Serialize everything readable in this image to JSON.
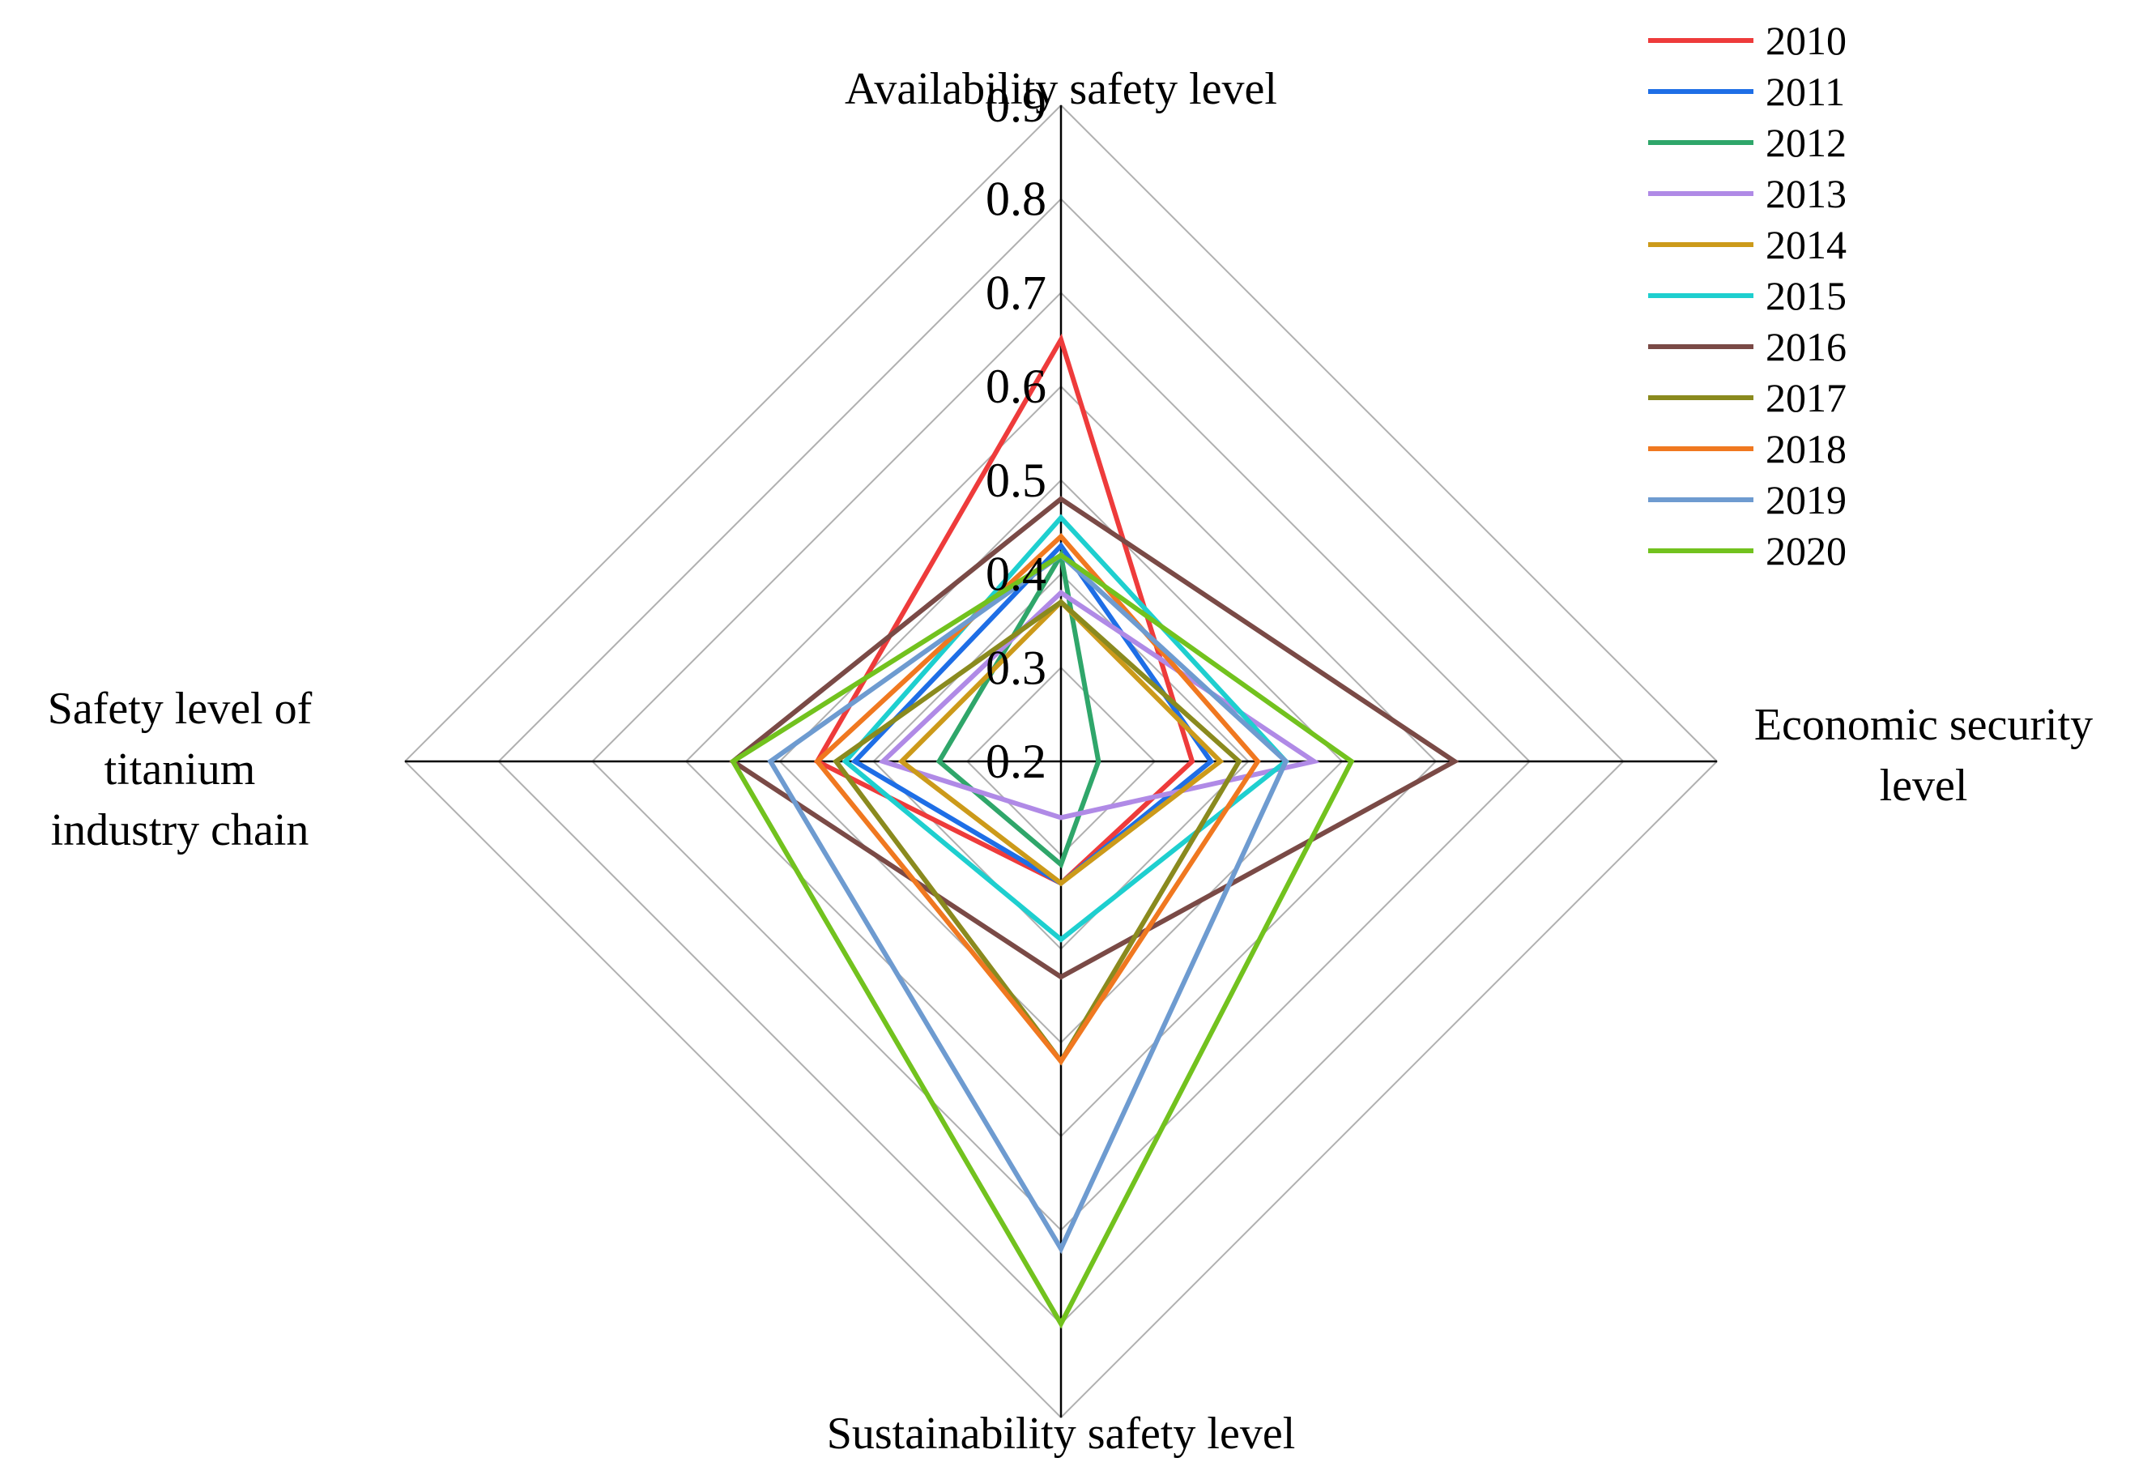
{
  "chart_data": {
    "type": "radar",
    "axes": [
      {
        "id": "top",
        "label_lines": [
          "Availability safety level"
        ]
      },
      {
        "id": "right",
        "label_lines": [
          "Economic security",
          "level"
        ]
      },
      {
        "id": "bottom",
        "label_lines": [
          "Sustainability safety level"
        ]
      },
      {
        "id": "left",
        "label_lines": [
          "Safety level of",
          "titanium",
          "industry chain"
        ]
      }
    ],
    "rlim": [
      0.2,
      0.9
    ],
    "ticks": [
      0.2,
      0.3,
      0.4,
      0.5,
      0.6,
      0.7,
      0.8,
      0.9
    ],
    "tick_labels": [
      "0.2",
      "0.3",
      "0.4",
      "0.5",
      "0.6",
      "0.7",
      "0.8",
      "0.9"
    ],
    "grid": true,
    "legend_position": "top-right",
    "series": [
      {
        "name": "2010",
        "color": "#ee3b3b",
        "values": [
          0.65,
          0.34,
          0.33,
          0.46
        ]
      },
      {
        "name": "2011",
        "color": "#1e6ee6",
        "values": [
          0.43,
          0.36,
          0.33,
          0.42
        ]
      },
      {
        "name": "2012",
        "color": "#2fa66a",
        "values": [
          0.42,
          0.24,
          0.31,
          0.33
        ]
      },
      {
        "name": "2013",
        "color": "#b08ae6",
        "values": [
          0.38,
          0.47,
          0.26,
          0.39
        ]
      },
      {
        "name": "2014",
        "color": "#cc9a1a",
        "values": [
          0.37,
          0.37,
          0.33,
          0.37
        ]
      },
      {
        "name": "2015",
        "color": "#1ecfcf",
        "values": [
          0.46,
          0.44,
          0.39,
          0.43
        ]
      },
      {
        "name": "2016",
        "color": "#7a4a46",
        "values": [
          0.48,
          0.62,
          0.43,
          0.55
        ]
      },
      {
        "name": "2017",
        "color": "#8a8a1e",
        "values": [
          0.37,
          0.39,
          0.52,
          0.44
        ]
      },
      {
        "name": "2018",
        "color": "#f07820",
        "values": [
          0.44,
          0.41,
          0.52,
          0.46
        ]
      },
      {
        "name": "2019",
        "color": "#6e9bd0",
        "values": [
          0.42,
          0.44,
          0.72,
          0.51
        ]
      },
      {
        "name": "2020",
        "color": "#72c21e",
        "values": [
          0.42,
          0.51,
          0.8,
          0.55
        ]
      }
    ]
  }
}
